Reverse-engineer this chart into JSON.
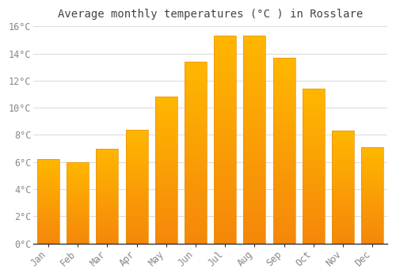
{
  "title": "Average monthly temperatures (°C ) in Rosslare",
  "months": [
    "Jan",
    "Feb",
    "Mar",
    "Apr",
    "May",
    "Jun",
    "Jul",
    "Aug",
    "Sep",
    "Oct",
    "Nov",
    "Dec"
  ],
  "values": [
    6.2,
    6.0,
    7.0,
    8.4,
    10.8,
    13.4,
    15.3,
    15.3,
    13.7,
    11.4,
    8.3,
    7.1
  ],
  "bar_color_top": "#FFB700",
  "bar_color_bottom": "#F5870A",
  "background_color": "#FFFFFF",
  "grid_color": "#DDDDDD",
  "tick_label_color": "#888888",
  "title_color": "#444444",
  "axis_color": "#333333",
  "ylim": [
    0,
    16
  ],
  "ytick_step": 2,
  "title_fontsize": 10,
  "tick_fontsize": 8.5,
  "bar_width": 0.75
}
